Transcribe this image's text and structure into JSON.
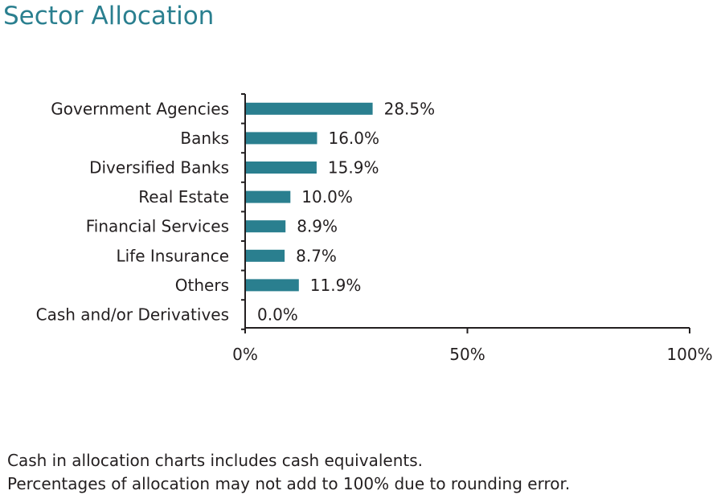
{
  "page_title": "Sector Allocation",
  "chart_data": {
    "type": "bar",
    "orientation": "horizontal",
    "title": "Sector Allocation",
    "categories": [
      "Government Agencies",
      "Banks",
      "Diversified Banks",
      "Real Estate",
      "Financial Services",
      "Life Insurance",
      "Others",
      "Cash and/or Derivatives"
    ],
    "values": [
      28.5,
      16.0,
      15.9,
      10.0,
      8.9,
      8.7,
      11.9,
      0.0
    ],
    "value_labels": [
      "28.5%",
      "16.0%",
      "15.9%",
      "10.0%",
      "8.9%",
      "8.7%",
      "11.9%",
      "0.0%"
    ],
    "xlim": [
      0,
      100
    ],
    "xticks": [
      0,
      50,
      100
    ],
    "xtick_labels": [
      "0%",
      "50%",
      "100%"
    ],
    "xlabel": "",
    "ylabel": "",
    "grid": false,
    "bar_color": "#2a7f8f"
  },
  "footnotes": [
    "Cash in allocation charts includes cash equivalents.",
    "Percentages of allocation may not add to 100% due to rounding error."
  ],
  "colors": {
    "accent": "#2a7f8f",
    "text": "#231f20"
  }
}
